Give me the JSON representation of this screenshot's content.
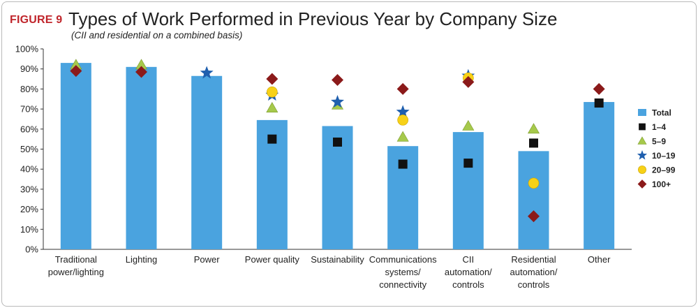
{
  "figure_label": "FIGURE 9",
  "chart_data": {
    "type": "bar",
    "title": "Types of Work Performed in Previous Year by Company Size",
    "subtitle": "(CII and residential on a combined basis)",
    "ylim": [
      0,
      100
    ],
    "yticks": [
      "0%",
      "10%",
      "20%",
      "30%",
      "40%",
      "50%",
      "60%",
      "70%",
      "80%",
      "90%",
      "100%"
    ],
    "categories": [
      [
        "Traditional",
        "power/lighting"
      ],
      [
        "Lighting"
      ],
      [
        "Power"
      ],
      [
        "Power quality"
      ],
      [
        "Sustainability"
      ],
      [
        "Communications",
        "systems/",
        "connectivity"
      ],
      [
        "CII",
        "automation/",
        "controls"
      ],
      [
        "Residential",
        "automation/",
        "controls"
      ],
      [
        "Other"
      ]
    ],
    "legend_position": "right",
    "grid": false,
    "series": [
      {
        "name": "Total",
        "marker": "bar",
        "color": "#4aa3df",
        "values": [
          93,
          91,
          86.5,
          64.5,
          61.5,
          51.5,
          58.5,
          49,
          73.5
        ]
      },
      {
        "name": "1–4",
        "marker": "square",
        "color": "#111111",
        "values": [
          null,
          null,
          null,
          55,
          53.5,
          42.5,
          43,
          53,
          73
        ]
      },
      {
        "name": "5–9",
        "marker": "triangle",
        "color": "#a6c94b",
        "values": [
          92,
          92,
          null,
          70.5,
          72,
          56,
          61.5,
          60,
          null
        ]
      },
      {
        "name": "10–19",
        "marker": "star",
        "color": "#1f5fae",
        "values": [
          null,
          null,
          88,
          77,
          73.5,
          68.5,
          86.5,
          null,
          null
        ]
      },
      {
        "name": "20–99",
        "marker": "circle",
        "color": "#f7d117",
        "values": [
          null,
          null,
          null,
          78.5,
          null,
          64.5,
          85.5,
          33,
          null
        ]
      },
      {
        "name": "100+",
        "marker": "diamond",
        "color": "#8b1a1a",
        "values": [
          89,
          88.5,
          null,
          85,
          84.5,
          80,
          83.5,
          16.5,
          80
        ]
      }
    ]
  }
}
